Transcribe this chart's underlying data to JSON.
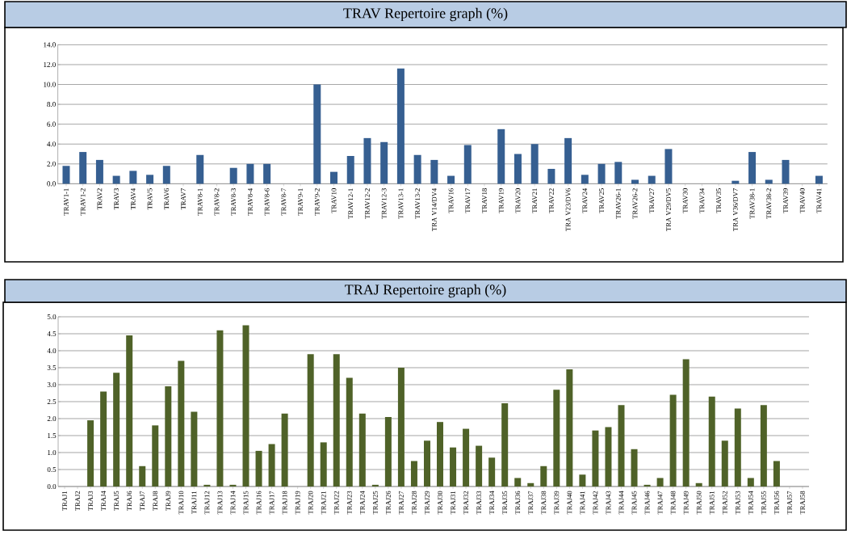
{
  "chart_data": [
    {
      "type": "bar",
      "title": "TRAV Repertoire graph (%)",
      "color": "#365f91",
      "grid": "y",
      "categories": [
        "TRAV1-1",
        "TRAV1-2",
        "TRAV2",
        "TRAV3",
        "TRAV4",
        "TRAV5",
        "TRAV6",
        "TRAV7",
        "TRAV8-1",
        "TRAV8-2",
        "TRAV8-3",
        "TRAV8-4",
        "TRAV8-6",
        "TRAV8-7",
        "TRAV9-1",
        "TRAV9-2",
        "TRAV10",
        "TRAV12-1",
        "TRAV12-2",
        "TRAV12-3",
        "TRAV13-1",
        "TRAV13-2",
        "TRA V14/DV4",
        "TRAV16",
        "TRAV17",
        "TRAV18",
        "TRAV19",
        "TRAV20",
        "TRAV21",
        "TRAV22",
        "TRA V23/DV6",
        "TRAV24",
        "TRAV25",
        "TRAV26-1",
        "TRAV26-2",
        "TRAV27",
        "TRA V29/DV5",
        "TRAV30",
        "TRAV34",
        "TRAV35",
        "TRA V36/DV7",
        "TRAV38-1",
        "TRAV38-2",
        "TRAV39",
        "TRAV40",
        "TRAV41"
      ],
      "values": [
        1.8,
        3.2,
        2.4,
        0.8,
        1.3,
        0.9,
        1.8,
        0,
        2.9,
        0,
        1.6,
        2.0,
        2.0,
        0,
        0,
        10.0,
        1.2,
        2.8,
        4.6,
        4.2,
        11.6,
        2.9,
        2.4,
        0.8,
        3.9,
        0,
        5.5,
        3.0,
        4.0,
        1.5,
        4.6,
        0.9,
        2.0,
        2.2,
        0.4,
        0.8,
        3.5,
        0,
        0,
        0,
        0.3,
        3.2,
        0.4,
        2.4,
        0,
        0.8
      ],
      "ylim": [
        0,
        14
      ],
      "yticks": [
        {
          "value": 0,
          "label": "0.0"
        },
        {
          "value": 2,
          "label": "2.0"
        },
        {
          "value": 4,
          "label": "4.0"
        },
        {
          "value": 6,
          "label": "6.0"
        },
        {
          "value": 8,
          "label": "8.0"
        },
        {
          "value": 10,
          "label": "10.0"
        },
        {
          "value": 12,
          "label": "12.0"
        },
        {
          "value": 14,
          "label": "14.0"
        }
      ]
    },
    {
      "type": "bar",
      "title": "TRAJ Repertoire graph (%)",
      "color": "#4f6228",
      "grid": "y",
      "categories": [
        "TRAJ1",
        "TRAJ2",
        "TRAJ3",
        "TRAJ4",
        "TRAJ5",
        "TRAJ6",
        "TRAJ7",
        "TRAJ8",
        "TRAJ9",
        "TRAJ10",
        "TRAJ11",
        "TRAJ12",
        "TRAJ13",
        "TRAJ14",
        "TRAJ15",
        "TRAJ16",
        "TRAJ17",
        "TRAJ18",
        "TRAJ19",
        "TRAJ20",
        "TRAJ21",
        "TRAJ22",
        "TRAJ23",
        "TRAJ24",
        "TRAJ25",
        "TRAJ26",
        "TRAJ27",
        "TRAJ28",
        "TRAJ29",
        "TRAJ30",
        "TRAJ31",
        "TRAJ32",
        "TRAJ33",
        "TRAJ34",
        "TRAJ35",
        "TRAJ36",
        "TRAJ37",
        "TRAJ38",
        "TRAJ39",
        "TRAJ40",
        "TRAJ41",
        "TRAJ42",
        "TRAJ43",
        "TRAJ44",
        "TRAJ45",
        "TRAJ46",
        "TRAJ47",
        "TRAJ48",
        "TRAJ49",
        "TRAJ50",
        "TRAJ51",
        "TRAJ52",
        "TRAJ53",
        "TRAJ54",
        "TRAJ55",
        "TRAJ56",
        "TRAJ57",
        "TRAJ58"
      ],
      "values": [
        0,
        0,
        1.95,
        2.8,
        3.35,
        4.45,
        0.6,
        1.8,
        2.95,
        3.7,
        2.2,
        0.05,
        4.6,
        0.05,
        4.75,
        1.05,
        1.25,
        2.15,
        0,
        3.9,
        1.3,
        3.9,
        3.2,
        2.15,
        0.05,
        2.05,
        3.5,
        0.75,
        1.35,
        1.9,
        1.15,
        1.7,
        1.2,
        0.85,
        2.45,
        0.25,
        0.1,
        0.6,
        2.85,
        3.45,
        0.35,
        1.65,
        1.75,
        2.4,
        1.1,
        0.05,
        0.25,
        2.7,
        3.75,
        0.1,
        2.65,
        1.35,
        2.3,
        0.25,
        2.4,
        0.75,
        0,
        0
      ],
      "ylim": [
        0,
        5
      ],
      "yticks": [
        {
          "value": 0,
          "label": "0.0"
        },
        {
          "value": 0.5,
          "label": "0.5"
        },
        {
          "value": 1,
          "label": "1.0"
        },
        {
          "value": 1.5,
          "label": "1.5"
        },
        {
          "value": 2,
          "label": "2.0"
        },
        {
          "value": 2.5,
          "label": "2.5"
        },
        {
          "value": 3,
          "label": "3.0"
        },
        {
          "value": 3.5,
          "label": "3.5"
        },
        {
          "value": 4,
          "label": "4.0"
        },
        {
          "value": 4.5,
          "label": "4.5"
        },
        {
          "value": 5,
          "label": "5.0"
        }
      ]
    }
  ]
}
